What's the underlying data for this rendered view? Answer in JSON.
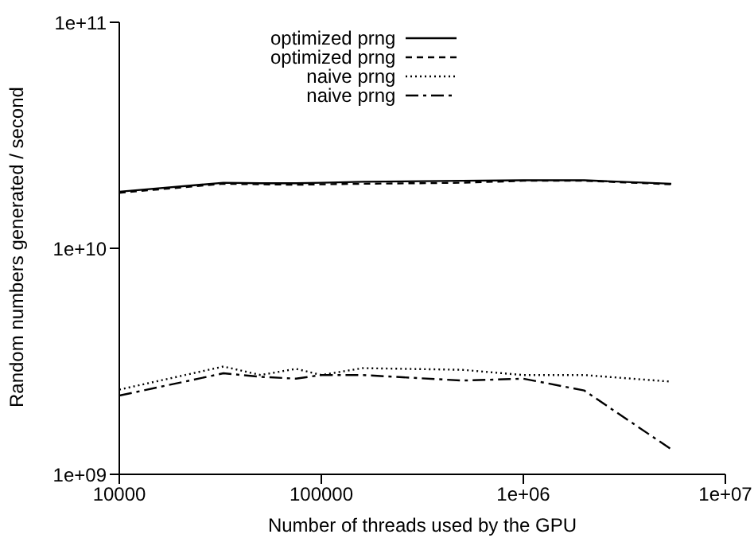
{
  "chart_data": {
    "type": "line",
    "xlabel": "Number of threads used by the GPU",
    "ylabel": "Random numbers generated / second",
    "log": "xy",
    "grid": false,
    "legend": "top",
    "marker": "none",
    "xlim": [
      10000,
      10000000
    ],
    "xticks": [
      {
        "value": 10000,
        "label": "10000"
      },
      {
        "value": 100000,
        "label": "100000"
      },
      {
        "value": 1000000,
        "label": "1e+06"
      },
      {
        "value": 10000000,
        "label": "1e+07"
      }
    ],
    "ylim": [
      1000000000,
      100000000000
    ],
    "yticks": [
      {
        "value": 1000000000,
        "label": "1e+09"
      },
      {
        "value": 10000000000,
        "label": "1e+10"
      },
      {
        "value": 100000000000,
        "label": "1e+11"
      }
    ],
    "x": [
      10000,
      32768,
      50000,
      75000,
      100000,
      160000,
      500000,
      1000000,
      2000000,
      5400000
    ],
    "series": [
      {
        "name": "optimized prng",
        "color": "#000000",
        "line_style": "solid",
        "values": [
          17800000000,
          19500000000,
          19400000000,
          19400000000,
          19500000000,
          19700000000,
          19900000000,
          20000000000,
          20000000000,
          19300000000
        ]
      },
      {
        "name": "optimized prng",
        "color": "#000000",
        "line_style": "dashed",
        "values": [
          17600000000,
          19300000000,
          19200000000,
          19100000000,
          19200000000,
          19300000000,
          19500000000,
          19900000000,
          19900000000,
          19200000000
        ]
      },
      {
        "name": "naive prng",
        "color": "#000000",
        "line_style": "dotted",
        "values": [
          2370000000,
          3000000000,
          2750000000,
          2930000000,
          2750000000,
          2950000000,
          2900000000,
          2750000000,
          2750000000,
          2570000000
        ]
      },
      {
        "name": "naive prng",
        "color": "#000000",
        "line_style": "dashdot",
        "values": [
          2230000000,
          2800000000,
          2700000000,
          2650000000,
          2750000000,
          2750000000,
          2600000000,
          2650000000,
          2350000000,
          1290000000
        ]
      }
    ]
  }
}
